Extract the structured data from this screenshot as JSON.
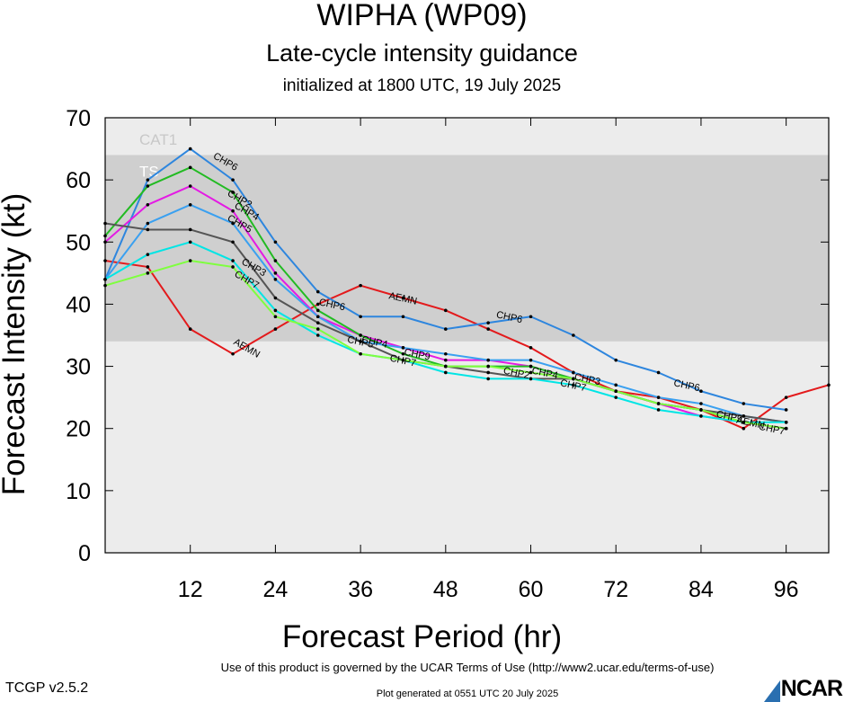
{
  "header": {
    "title": "WIPHA (WP09)",
    "subtitle": "Late-cycle intensity guidance",
    "initialized": "initialized at 1800 UTC, 19 July 2025"
  },
  "footer": {
    "terms": "Use of this product is governed by the UCAR Terms of Use (http://www2.ucar.edu/terms-of-use)",
    "version": "TCGP v2.5.2",
    "generated": "Plot generated at 0551 UTC   20 July 2025",
    "logo": "NCAR"
  },
  "chart_data": {
    "type": "line",
    "xlabel": "Forecast Period (hr)",
    "ylabel": "Forecast Intensity (kt)",
    "xlim": [
      0,
      102
    ],
    "ylim": [
      0,
      70
    ],
    "xticks": [
      12,
      24,
      36,
      48,
      60,
      72,
      84,
      96
    ],
    "yticks": [
      0,
      10,
      20,
      30,
      40,
      50,
      60,
      70
    ],
    "bands": [
      {
        "label": "CAT1",
        "from": 64,
        "to": 70,
        "color": "#ececec"
      },
      {
        "label": "TS",
        "from": 34,
        "to": 64,
        "color": "#cfcfcf"
      },
      {
        "label": "",
        "from": 0,
        "to": 34,
        "color": "#ececec"
      }
    ],
    "series": [
      {
        "name": "AEMN",
        "color": "#e31a1c",
        "points": [
          [
            0,
            47
          ],
          [
            6,
            46
          ],
          [
            12,
            36
          ],
          [
            18,
            32
          ],
          [
            24,
            36
          ],
          [
            30,
            40
          ],
          [
            36,
            43
          ],
          [
            42,
            41
          ],
          [
            48,
            39
          ],
          [
            54,
            36
          ],
          [
            60,
            33
          ],
          [
            66,
            29
          ],
          [
            72,
            26
          ],
          [
            78,
            25
          ],
          [
            84,
            23
          ],
          [
            90,
            20
          ],
          [
            96,
            25
          ],
          [
            102,
            27
          ]
        ],
        "labels": [
          [
            20,
            33
          ],
          [
            42,
            41
          ],
          [
            91,
            21
          ]
        ]
      },
      {
        "name": "CHP6",
        "color": "#2e86de",
        "points": [
          [
            0,
            44
          ],
          [
            6,
            60
          ],
          [
            12,
            65
          ],
          [
            18,
            60
          ],
          [
            24,
            50
          ],
          [
            30,
            42
          ],
          [
            36,
            38
          ],
          [
            42,
            38
          ],
          [
            48,
            36
          ],
          [
            54,
            37
          ],
          [
            60,
            38
          ],
          [
            66,
            35
          ],
          [
            72,
            31
          ],
          [
            78,
            29
          ],
          [
            84,
            26
          ],
          [
            90,
            24
          ],
          [
            96,
            23
          ]
        ],
        "labels": [
          [
            17,
            63
          ],
          [
            32,
            40
          ],
          [
            57,
            38
          ],
          [
            82,
            27
          ]
        ]
      },
      {
        "name": "CHP2",
        "color": "#e41ae4",
        "points": [
          [
            0,
            50
          ],
          [
            6,
            56
          ],
          [
            12,
            59
          ],
          [
            18,
            55
          ],
          [
            24,
            45
          ],
          [
            30,
            38
          ],
          [
            36,
            35
          ],
          [
            42,
            33
          ],
          [
            48,
            31
          ],
          [
            54,
            31
          ],
          [
            60,
            30
          ],
          [
            66,
            28
          ],
          [
            72,
            26
          ],
          [
            78,
            24
          ],
          [
            84,
            22
          ],
          [
            90,
            21
          ],
          [
            96,
            20
          ]
        ],
        "labels": [
          [
            19,
            57
          ],
          [
            58,
            29
          ]
        ]
      },
      {
        "name": "CHP4",
        "color": "#22bb22",
        "points": [
          [
            0,
            51
          ],
          [
            6,
            59
          ],
          [
            12,
            62
          ],
          [
            18,
            58
          ],
          [
            24,
            47
          ],
          [
            30,
            39
          ],
          [
            36,
            35
          ],
          [
            42,
            32
          ],
          [
            48,
            30
          ],
          [
            54,
            30
          ],
          [
            60,
            30
          ],
          [
            66,
            28
          ],
          [
            72,
            26
          ],
          [
            78,
            24
          ],
          [
            84,
            23
          ],
          [
            90,
            21
          ],
          [
            96,
            20
          ]
        ],
        "labels": [
          [
            20,
            55
          ],
          [
            38,
            34
          ],
          [
            62,
            29
          ]
        ]
      },
      {
        "name": "CHP5",
        "color": "#3aa0f0",
        "points": [
          [
            0,
            44
          ],
          [
            6,
            53
          ],
          [
            12,
            56
          ],
          [
            18,
            53
          ],
          [
            24,
            44
          ],
          [
            30,
            38
          ],
          [
            36,
            34
          ],
          [
            42,
            33
          ],
          [
            48,
            32
          ],
          [
            54,
            31
          ],
          [
            60,
            31
          ],
          [
            66,
            29
          ],
          [
            72,
            27
          ],
          [
            78,
            25
          ],
          [
            84,
            24
          ],
          [
            90,
            22
          ],
          [
            96,
            21
          ]
        ],
        "labels": [
          [
            19,
            53
          ],
          [
            36,
            34
          ]
        ]
      },
      {
        "name": "CHP3",
        "color": "#555555",
        "points": [
          [
            0,
            53
          ],
          [
            6,
            52
          ],
          [
            12,
            52
          ],
          [
            18,
            50
          ],
          [
            24,
            41
          ],
          [
            30,
            37
          ],
          [
            36,
            34
          ],
          [
            42,
            31
          ],
          [
            48,
            30
          ],
          [
            54,
            29
          ],
          [
            60,
            28
          ],
          [
            66,
            28
          ],
          [
            72,
            26
          ],
          [
            78,
            24
          ],
          [
            84,
            23
          ],
          [
            90,
            22
          ],
          [
            96,
            21
          ]
        ],
        "labels": [
          [
            21,
            46
          ],
          [
            68,
            28
          ]
        ]
      },
      {
        "name": "CHP7",
        "color": "#00e5e5",
        "points": [
          [
            0,
            44
          ],
          [
            6,
            48
          ],
          [
            12,
            50
          ],
          [
            18,
            47
          ],
          [
            24,
            39
          ],
          [
            30,
            35
          ],
          [
            36,
            32
          ],
          [
            42,
            31
          ],
          [
            48,
            29
          ],
          [
            54,
            28
          ],
          [
            60,
            28
          ],
          [
            66,
            27
          ],
          [
            72,
            25
          ],
          [
            78,
            23
          ],
          [
            84,
            22
          ],
          [
            90,
            21
          ],
          [
            96,
            21
          ]
        ],
        "labels": [
          [
            20,
            44
          ],
          [
            42,
            31
          ],
          [
            66,
            27
          ],
          [
            94,
            20
          ]
        ]
      },
      {
        "name": "CHP9",
        "color": "#7fff3f",
        "points": [
          [
            0,
            43
          ],
          [
            6,
            45
          ],
          [
            12,
            47
          ],
          [
            18,
            46
          ],
          [
            24,
            38
          ],
          [
            30,
            36
          ],
          [
            36,
            32
          ],
          [
            42,
            31
          ],
          [
            48,
            30
          ],
          [
            54,
            30
          ],
          [
            60,
            29
          ],
          [
            66,
            28
          ],
          [
            72,
            26
          ],
          [
            78,
            24
          ],
          [
            84,
            23
          ],
          [
            90,
            21
          ],
          [
            96,
            20
          ]
        ],
        "labels": [
          [
            44,
            32
          ],
          [
            88,
            22
          ]
        ]
      }
    ]
  }
}
